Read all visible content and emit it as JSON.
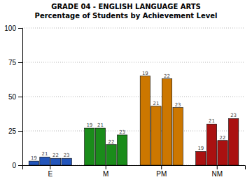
{
  "chart_data": {
    "type": "bar",
    "title": "GRADE 04 - ENGLISH LANGUAGE ARTS",
    "subtitle": "Percentage of Students by Achievement Level",
    "categories": [
      "E",
      "M",
      "PM",
      "NM"
    ],
    "series": [
      {
        "name": "19",
        "values": [
          3,
          27,
          65,
          10
        ],
        "colors": [
          "#2255bb",
          "#1a8c1a",
          "#cc7700",
          "#aa1111"
        ]
      },
      {
        "name": "21",
        "values": [
          6,
          27,
          43,
          30
        ],
        "colors": [
          "#2255bb",
          "#1a8c1a",
          "#cc7700",
          "#aa1111"
        ]
      },
      {
        "name": "22",
        "values": [
          5,
          15,
          63,
          18
        ],
        "colors": [
          "#2255bb",
          "#1a8c1a",
          "#cc7700",
          "#aa1111"
        ]
      },
      {
        "name": "23",
        "values": [
          5,
          22,
          42,
          34
        ],
        "colors": [
          "#2255bb",
          "#1a8c1a",
          "#cc7700",
          "#aa1111"
        ]
      }
    ],
    "ylim": [
      0,
      100
    ],
    "yticks": [
      0,
      25,
      50,
      75,
      100
    ],
    "grid": true
  }
}
